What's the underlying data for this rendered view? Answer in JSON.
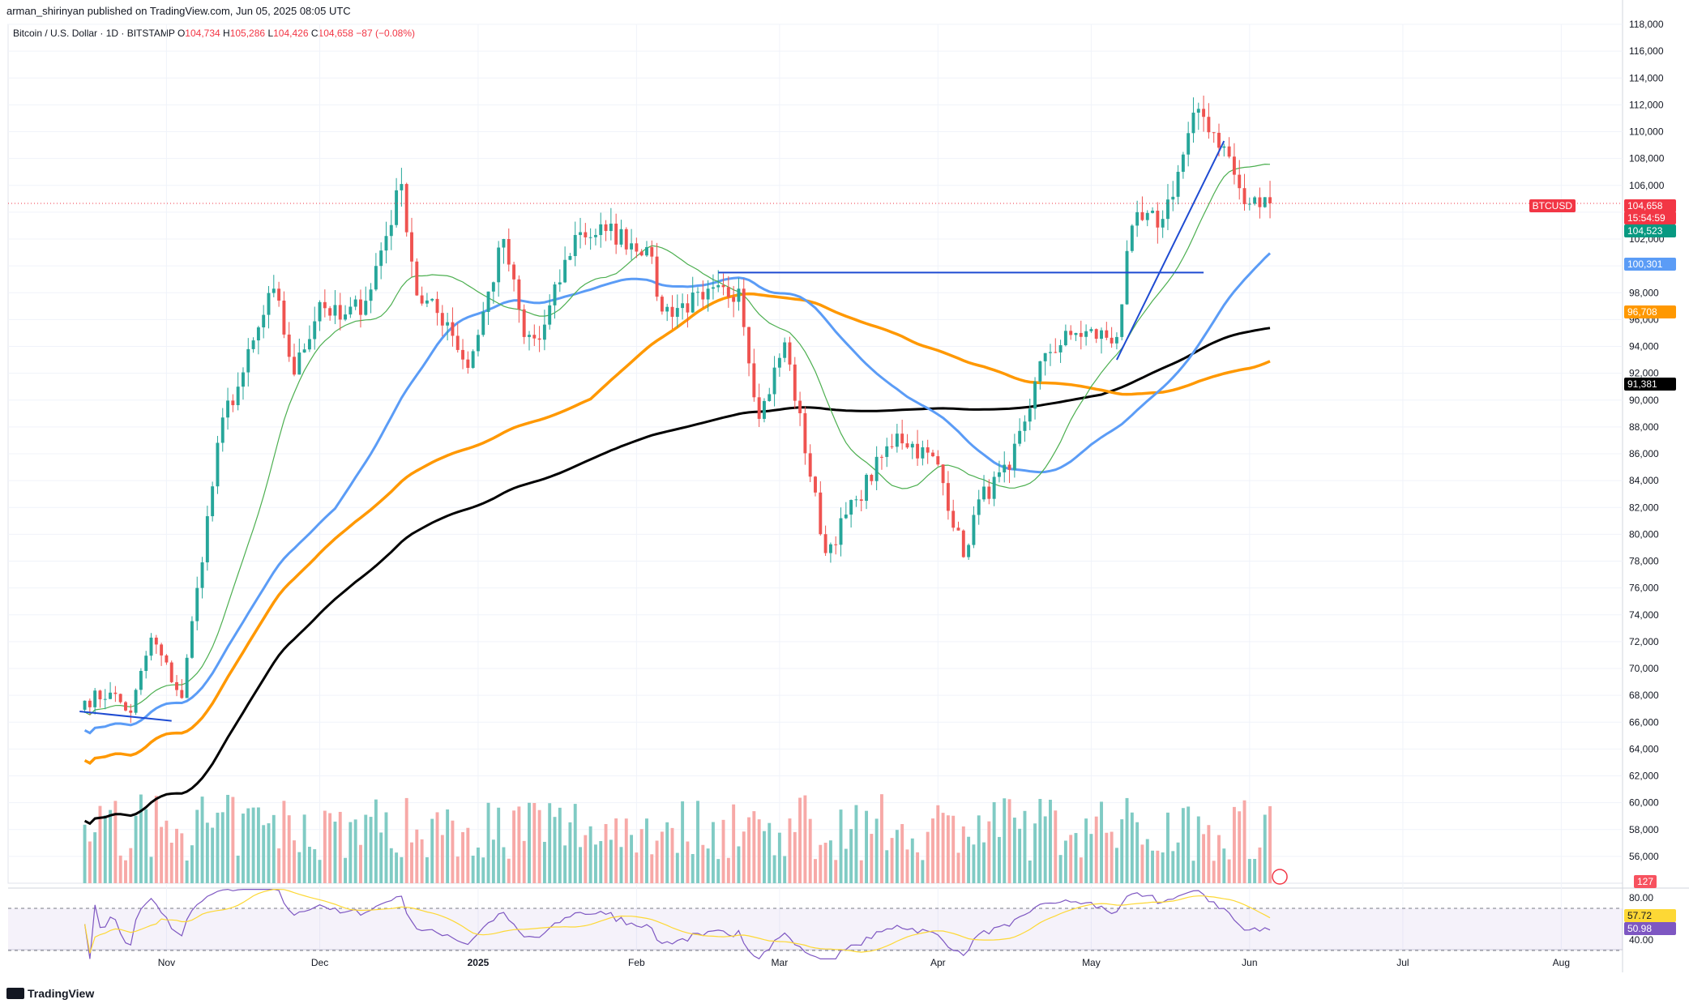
{
  "header": {
    "publisher": "arman_shirinyan published on TradingView.com, Jun 05, 2025 08:05 UTC"
  },
  "legend": {
    "symbol": "Bitcoin / U.S. Dollar · 1D · BITSTAMP",
    "o_label": "O",
    "o_value": "104,734",
    "h_label": "H",
    "h_value": "105,286",
    "l_label": "L",
    "l_value": "104,426",
    "c_label": "C",
    "c_value": "104,658",
    "change": "−87 (−0.08%)"
  },
  "price_tags": {
    "symbol_tag": "BTCUSD",
    "last_price": "104,658",
    "countdown": "15:54:59",
    "ma_fast": "104,523",
    "ma_50": "100,301",
    "ma_100": "96,708",
    "ma_200": "91,381",
    "volume": "127",
    "rsi": "57.72",
    "rsi_ma": "50.98"
  },
  "colors": {
    "up": "#26a69a",
    "down": "#ef5350",
    "vol_up": "#80cbc4",
    "vol_down": "#f7a9a7",
    "ma_fast": "#4caf50",
    "ma_50": "#5b9cf6",
    "ma_100": "#ff9800",
    "ma_200": "#000000",
    "trendline": "#1e4bd2",
    "rsi": "#7e57c2",
    "rsi_ma": "#fdd835"
  },
  "branding": {
    "logo_text": "TradingView"
  },
  "chart_data": {
    "type": "candlestick",
    "title": "Bitcoin / U.S. Dollar · 1D · BITSTAMP",
    "y_axis_ticks": [
      "118,000",
      "116,000",
      "114,000",
      "112,000",
      "110,000",
      "108,000",
      "106,000",
      "104,000",
      "102,000",
      "100,000",
      "98,000",
      "96,000",
      "94,000",
      "92,000",
      "90,000",
      "88,000",
      "86,000",
      "84,000",
      "82,000",
      "80,000",
      "78,000",
      "76,000",
      "74,000",
      "72,000",
      "70,000",
      "68,000",
      "66,000",
      "64,000",
      "62,000",
      "60,000",
      "58,000",
      "56,000"
    ],
    "x_axis_ticks": [
      "Nov",
      "Dec",
      "2025",
      "Feb",
      "Mar",
      "Apr",
      "May",
      "Jun",
      "Jul",
      "Aug"
    ],
    "rsi_ticks": [
      "80.00",
      "40.00"
    ],
    "ylim": [
      54000,
      118000
    ],
    "price_path": [
      [
        "2024-10-16",
        67600
      ],
      [
        "2024-10-21",
        68200
      ],
      [
        "2024-10-25",
        66700
      ],
      [
        "2024-10-29",
        72300
      ],
      [
        "2024-11-04",
        67800
      ],
      [
        "2024-11-07",
        76000
      ],
      [
        "2024-11-12",
        88700
      ],
      [
        "2024-11-15",
        91000
      ],
      [
        "2024-11-22",
        98300
      ],
      [
        "2024-11-26",
        91900
      ],
      [
        "2024-12-01",
        97300
      ],
      [
        "2024-12-05",
        96000
      ],
      [
        "2024-12-10",
        97400
      ],
      [
        "2024-12-17",
        106100
      ],
      [
        "2024-12-20",
        97800
      ],
      [
        "2024-12-26",
        95800
      ],
      [
        "2024-12-30",
        92400
      ],
      [
        "2025-01-06",
        102000
      ],
      [
        "2025-01-10",
        94700
      ],
      [
        "2025-01-13",
        94500
      ],
      [
        "2025-01-20",
        102300
      ],
      [
        "2025-01-26",
        102600
      ],
      [
        "2025-02-03",
        101400
      ],
      [
        "2025-02-06",
        96600
      ],
      [
        "2025-02-14",
        97500
      ],
      [
        "2025-02-21",
        98300
      ],
      [
        "2025-02-25",
        88600
      ],
      [
        "2025-03-02",
        94300
      ],
      [
        "2025-03-10",
        78600
      ],
      [
        "2025-03-16",
        82600
      ],
      [
        "2025-03-24",
        87500
      ],
      [
        "2025-04-01",
        85200
      ],
      [
        "2025-04-06",
        78300
      ],
      [
        "2025-04-09",
        82600
      ],
      [
        "2025-04-15",
        84800
      ],
      [
        "2025-04-22",
        93500
      ],
      [
        "2025-04-28",
        95000
      ],
      [
        "2025-05-06",
        94700
      ],
      [
        "2025-05-09",
        103000
      ],
      [
        "2025-05-15",
        103500
      ],
      [
        "2025-05-22",
        111700
      ],
      [
        "2025-05-27",
        108900
      ],
      [
        "2025-05-31",
        104600
      ],
      [
        "2025-06-05",
        104658
      ]
    ],
    "series": [
      {
        "name": "MA fast",
        "last": 104523
      },
      {
        "name": "MA 50",
        "last": 100301
      },
      {
        "name": "MA 100",
        "last": 96708
      },
      {
        "name": "MA 200",
        "last": 91381
      }
    ],
    "volume_last": 127,
    "rsi_last": 57.72,
    "rsi_ma_last": 50.98,
    "annotations": [
      {
        "type": "horizontal_line",
        "price": 99500,
        "from": "2025-02-17",
        "to": "2025-05-23"
      },
      {
        "type": "trendline",
        "from": [
          "2025-05-06",
          93000
        ],
        "to": [
          "2025-05-27",
          109300
        ]
      },
      {
        "type": "trendline",
        "from": [
          "2024-10-15",
          66800
        ],
        "to": [
          "2024-11-02",
          66100
        ]
      }
    ],
    "grid": true
  }
}
